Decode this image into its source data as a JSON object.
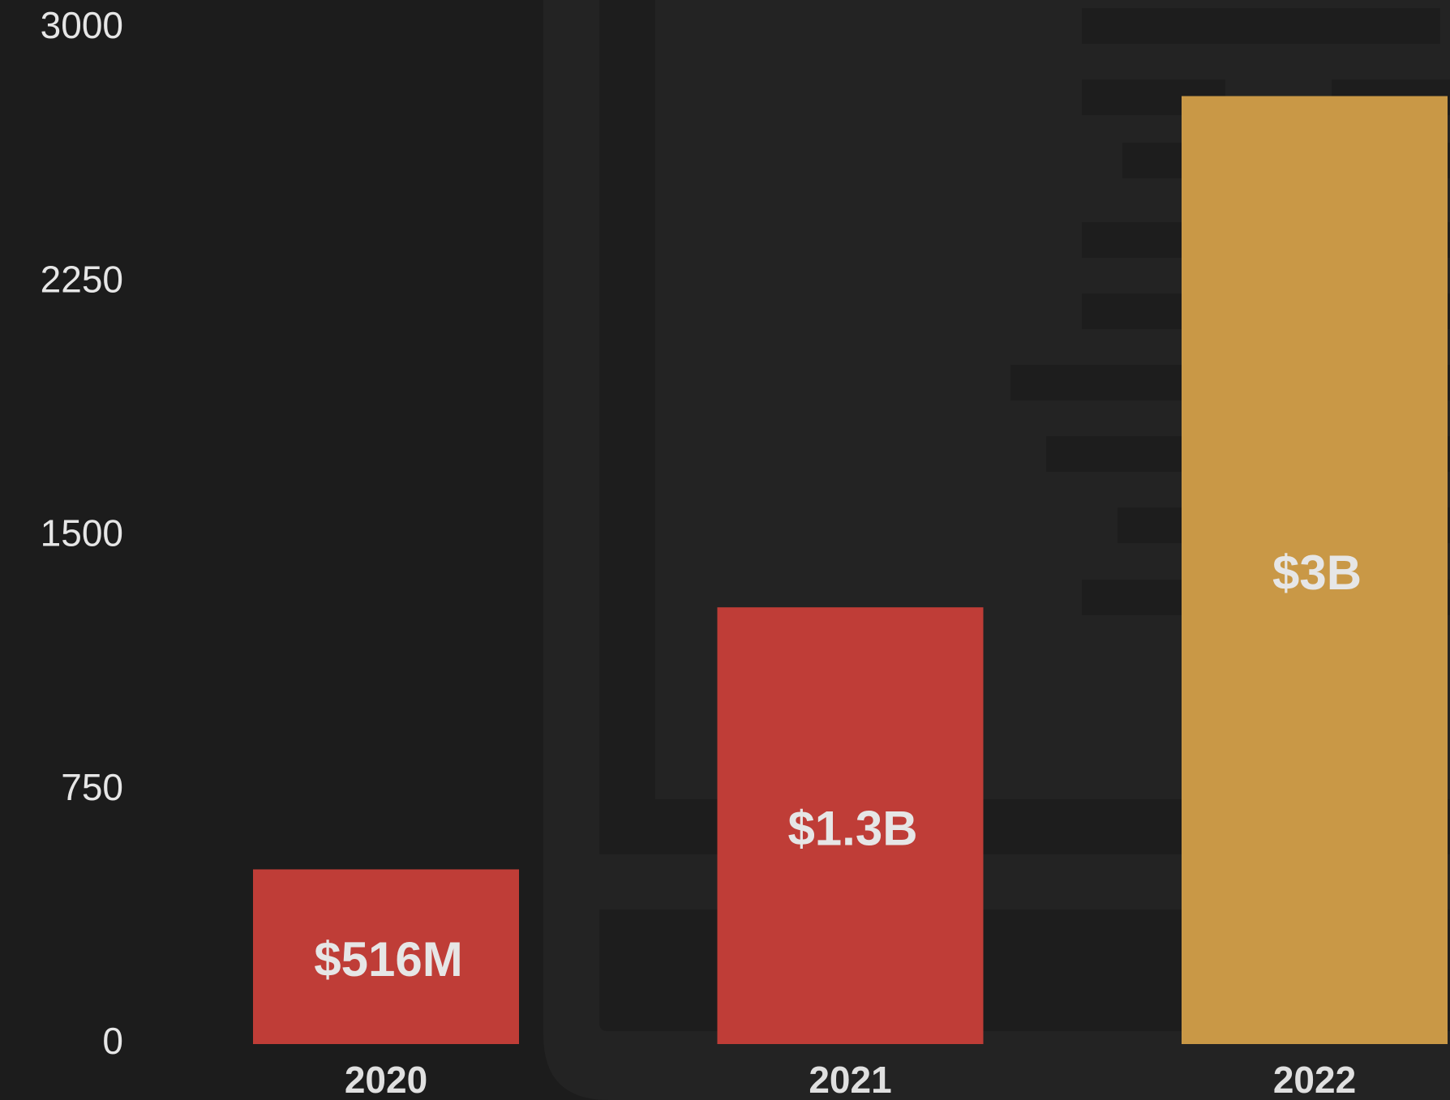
{
  "chart_data": {
    "type": "bar",
    "categories": [
      "2020",
      "2021",
      "2022"
    ],
    "values": [
      516,
      1290,
      2800
    ],
    "value_labels": [
      "$516M",
      "$1.3B",
      "$3B"
    ],
    "colors": [
      "#bf3d37",
      "#bf3d37",
      "#c99846"
    ],
    "ylim": [
      0,
      3000
    ],
    "yticks": [
      0,
      750,
      1500,
      2250,
      3000
    ],
    "grid": false
  }
}
